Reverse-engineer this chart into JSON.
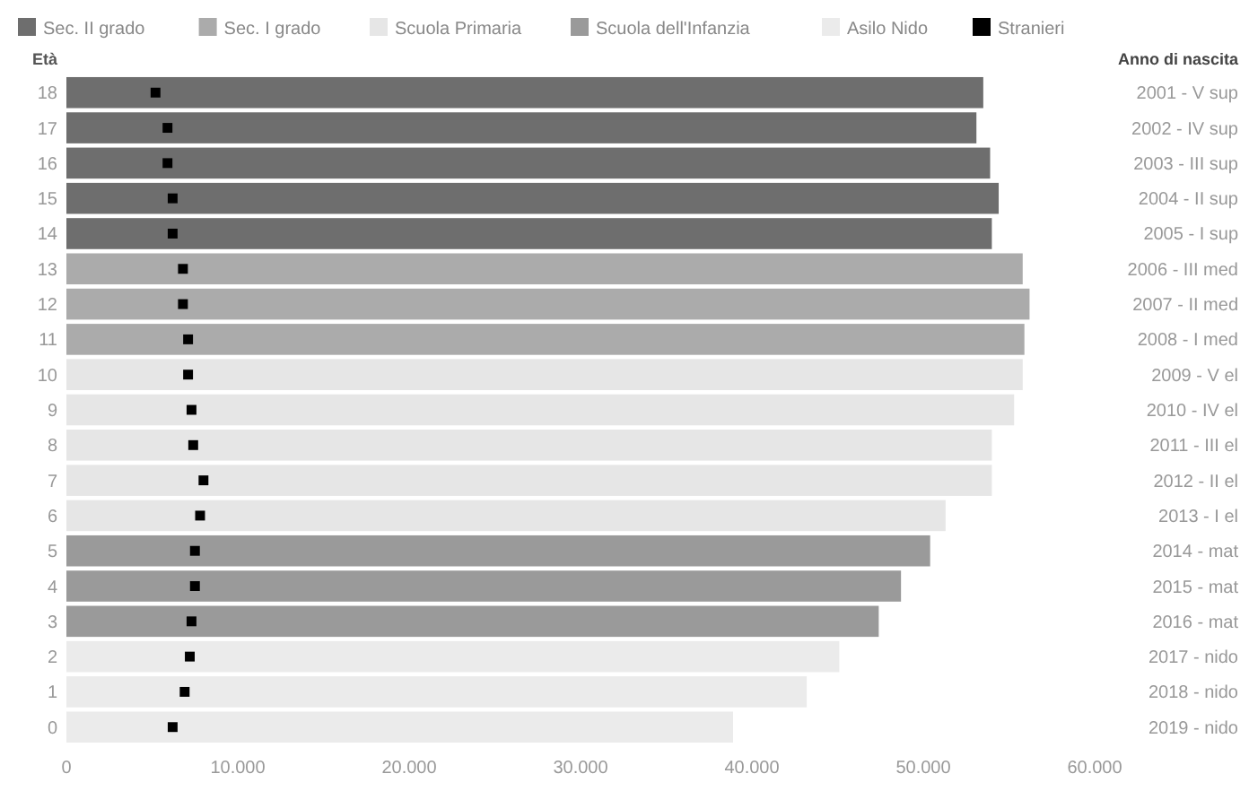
{
  "chart_data": {
    "type": "bar",
    "orientation": "horizontal",
    "ylabel": "Età",
    "y2label": "Anno di nascita",
    "categories": [
      "18",
      "17",
      "16",
      "15",
      "14",
      "13",
      "12",
      "11",
      "10",
      "9",
      "8",
      "7",
      "6",
      "5",
      "4",
      "3",
      "2",
      "1",
      "0"
    ],
    "y2_categories": [
      "2001 - V sup",
      "2002 - IV sup",
      "2003 - III sup",
      "2004 - II sup",
      "2005 - I sup",
      "2006 - III med",
      "2007 - II med",
      "2008 - I med",
      "2009 - V el",
      "2010 - IV el",
      "2011 - III el",
      "2012 - II el",
      "2013 - I el",
      "2014 - mat",
      "2015 - mat",
      "2016 - mat",
      "2017 - nido",
      "2018 - nido",
      "2019 - nido"
    ],
    "series": [
      {
        "name": "Sec. II grado",
        "color": "#6e6e6e",
        "values": [
          53500,
          53100,
          53900,
          54400,
          54000,
          null,
          null,
          null,
          null,
          null,
          null,
          null,
          null,
          null,
          null,
          null,
          null,
          null,
          null
        ]
      },
      {
        "name": "Sec. I grado",
        "color": "#ababab",
        "values": [
          null,
          null,
          null,
          null,
          null,
          55800,
          56200,
          55900,
          null,
          null,
          null,
          null,
          null,
          null,
          null,
          null,
          null,
          null,
          null
        ]
      },
      {
        "name": "Scuola Primaria",
        "color": "#e6e6e6",
        "values": [
          null,
          null,
          null,
          null,
          null,
          null,
          null,
          null,
          55800,
          55300,
          54000,
          54000,
          51300,
          null,
          null,
          null,
          null,
          null,
          null
        ]
      },
      {
        "name": "Scuola dell'Infanzia",
        "color": "#9a9a9a",
        "values": [
          null,
          null,
          null,
          null,
          null,
          null,
          null,
          null,
          null,
          null,
          null,
          null,
          null,
          50400,
          48700,
          47400,
          null,
          null,
          null
        ]
      },
      {
        "name": "Asilo Nido",
        "color": "#ebebeb",
        "values": [
          null,
          null,
          null,
          null,
          null,
          null,
          null,
          null,
          null,
          null,
          null,
          null,
          null,
          null,
          null,
          null,
          45100,
          43200,
          38900
        ]
      },
      {
        "name": "Stranieri",
        "type": "scatter",
        "color": "#000000",
        "x": [
          "18",
          "17",
          "16",
          "15",
          "14",
          "13",
          "12",
          "11",
          "10",
          "9",
          "8",
          "7",
          "6",
          "5",
          "4",
          "3",
          "2",
          "1",
          "0"
        ],
        "values": [
          5200,
          5900,
          5900,
          6200,
          6200,
          6800,
          6800,
          7100,
          7100,
          7300,
          7400,
          8000,
          7800,
          7500,
          7500,
          7300,
          7200,
          6900,
          6200
        ]
      }
    ],
    "xlim": [
      0,
      60000
    ],
    "xticks": [
      0,
      {
        "value": 10000,
        "label": "10.000"
      },
      {
        "value": 20000,
        "label": "20.000"
      },
      {
        "value": 30000,
        "label": "30.000"
      },
      {
        "value": 40000,
        "label": "40.000"
      },
      {
        "value": 50000,
        "label": "50.000"
      },
      {
        "value": 60000,
        "label": "60.000"
      }
    ],
    "legend": "top",
    "marker": "square"
  }
}
